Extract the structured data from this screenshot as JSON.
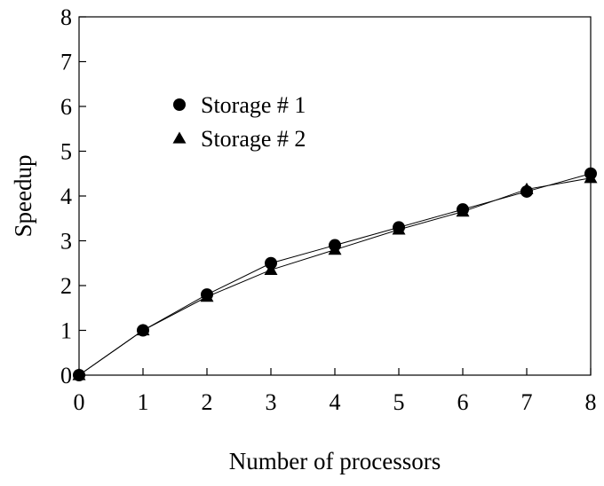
{
  "chart_data": {
    "type": "line",
    "title": "",
    "xlabel": "Number of processors",
    "ylabel": "Speedup",
    "x": [
      0,
      1,
      2,
      3,
      4,
      5,
      6,
      7,
      8
    ],
    "xlim": [
      0,
      8
    ],
    "ylim": [
      0,
      8
    ],
    "xticks": [
      "0",
      "1",
      "2",
      "3",
      "4",
      "5",
      "6",
      "7",
      "8"
    ],
    "yticks": [
      "0",
      "1",
      "2",
      "3",
      "4",
      "5",
      "6",
      "7",
      "8"
    ],
    "grid": false,
    "legend_position": "upper-left",
    "series": [
      {
        "name": "Storage # 1",
        "marker": "circle",
        "values": [
          0,
          1.0,
          1.8,
          2.5,
          2.9,
          3.3,
          3.7,
          4.1,
          4.5
        ]
      },
      {
        "name": "Storage # 2",
        "marker": "triangle",
        "values": [
          0,
          1.0,
          1.75,
          2.35,
          2.8,
          3.25,
          3.65,
          4.15,
          4.4
        ]
      }
    ]
  }
}
